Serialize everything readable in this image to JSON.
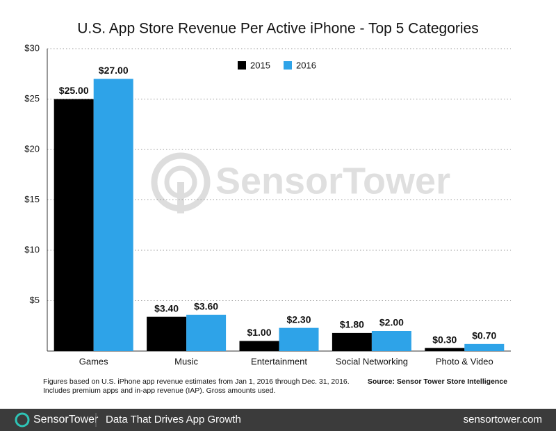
{
  "chart_data": {
    "type": "bar",
    "title": "U.S. App Store Revenue Per Active iPhone - Top 5 Categories",
    "categories": [
      "Games",
      "Music",
      "Entertainment",
      "Social Networking",
      "Photo & Video"
    ],
    "series": [
      {
        "name": "2015",
        "color": "#000000",
        "values": [
          25,
          3.4,
          1,
          1.8,
          0.3
        ],
        "value_labels": [
          "$25.00",
          "$3.40",
          "$1.00",
          "$1.80",
          "$0.30"
        ]
      },
      {
        "name": "2016",
        "color": "#2ea3e8",
        "values": [
          27,
          3.6,
          2.3,
          2,
          0.7
        ],
        "value_labels": [
          "$27.00",
          "$3.60",
          "$2.30",
          "$2.00",
          "$0.70"
        ]
      }
    ],
    "ylim": [
      0,
      30
    ],
    "yticks": [
      {
        "value": 5,
        "label": "$5"
      },
      {
        "value": 10,
        "label": "$10"
      },
      {
        "value": 15,
        "label": "$15"
      },
      {
        "value": 20,
        "label": "$20"
      },
      {
        "value": 25,
        "label": "$25"
      },
      {
        "value": 30,
        "label": "$30"
      }
    ],
    "grid": true,
    "legend": "top",
    "watermark": "SensorTower",
    "notes": [
      "Figures based on U.S. iPhone app revenue estimates from Jan 1, 2016 through Dec. 31, 2016.",
      "Includes premium apps and in-app revenue (IAP). Gross amounts used."
    ],
    "source": "Source: Sensor Tower Store Intelligence"
  },
  "footer": {
    "brand": "SensorTower",
    "tagline": "Data That Drives App Growth",
    "url": "sensortower.com"
  }
}
